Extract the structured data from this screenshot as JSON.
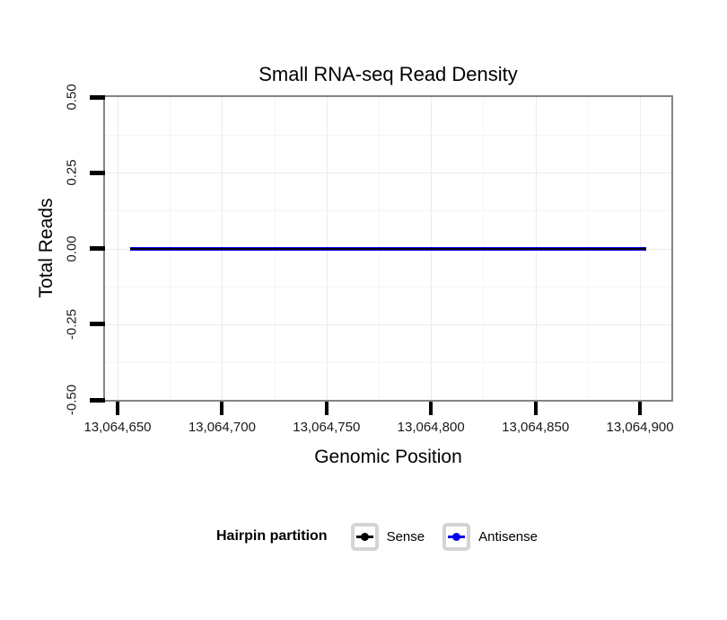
{
  "chart_data": {
    "type": "line",
    "title": "Small RNA-seq Read Density",
    "xlabel": "Genomic Position",
    "ylabel": "Total Reads",
    "xlim": [
      13064644,
      13064915
    ],
    "ylim": [
      -0.5,
      0.5
    ],
    "x_ticks": {
      "values": [
        13064650,
        13064700,
        13064750,
        13064800,
        13064850,
        13064900
      ],
      "labels": [
        "13,064,650",
        "13,064,700",
        "13,064,750",
        "13,064,800",
        "13,064,850",
        "13,064,900"
      ]
    },
    "y_ticks": {
      "values": [
        0.5,
        0.25,
        0,
        -0.25,
        -0.5
      ],
      "labels": [
        "0.50",
        "0.25",
        "0.00",
        "-0.25",
        "-0.50"
      ]
    },
    "grid": {
      "major": true,
      "minor": true
    },
    "legend": {
      "title": "Hairpin partition",
      "position": "bottom",
      "entries": [
        {
          "name": "Sense",
          "color": "#000000"
        },
        {
          "name": "Antisense",
          "color": "#0000ee"
        }
      ]
    },
    "series": [
      {
        "name": "Sense",
        "color": "#000000",
        "x": [
          13064656,
          13064903
        ],
        "y": [
          0,
          0
        ]
      },
      {
        "name": "Antisense",
        "color": "#0000ee",
        "x": [
          13064656,
          13064903
        ],
        "y": [
          0,
          0
        ]
      }
    ],
    "colors": {
      "panel_border": "#858585",
      "grid_major": "#ebebeb",
      "grid_minor": "#f5f5f5",
      "tick": "#000000"
    }
  }
}
